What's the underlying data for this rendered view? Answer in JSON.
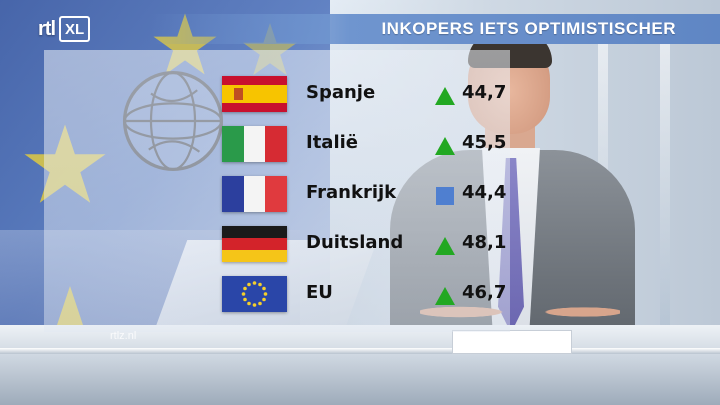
{
  "broadcast": {
    "logo": {
      "main": "rtl",
      "box": "XL"
    },
    "title": "INKOPERS IETS OPTIMISTISCHER",
    "watermark": "rtlz.nl"
  },
  "colors": {
    "title_bar": "#5f86c4",
    "up_indicator": "#22a822",
    "flat_indicator": "#4f7fd0"
  },
  "table": {
    "rows": [
      {
        "country": "Spanje",
        "flag": "spain-flag-icon",
        "trend": "up",
        "value": "44,7"
      },
      {
        "country": "Italië",
        "flag": "italy-flag-icon",
        "trend": "up",
        "value": "45,5"
      },
      {
        "country": "Frankrijk",
        "flag": "france-flag-icon",
        "trend": "flat",
        "value": "44,4"
      },
      {
        "country": "Duitsland",
        "flag": "germany-flag-icon",
        "trend": "up",
        "value": "48,1"
      },
      {
        "country": "EU",
        "flag": "eu-flag-icon",
        "trend": "up",
        "value": "46,7"
      }
    ]
  }
}
